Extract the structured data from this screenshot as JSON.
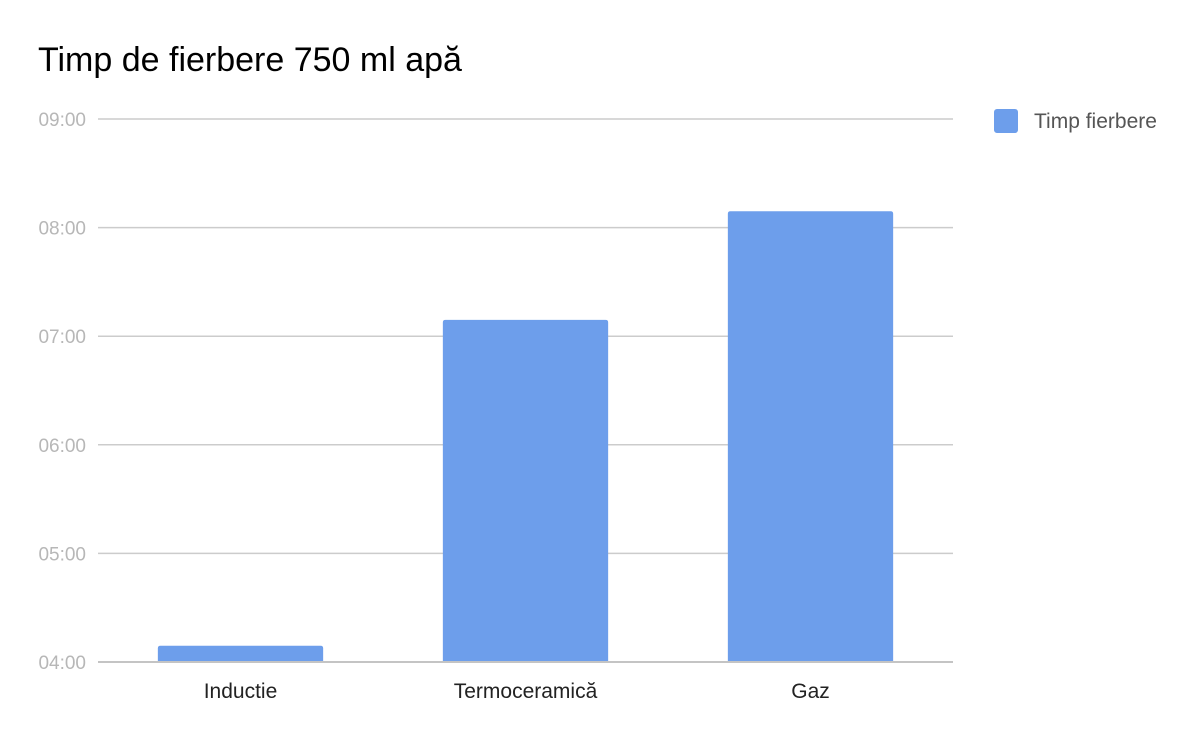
{
  "chart_data": {
    "type": "bar",
    "title": "Timp de fierbere 750 ml apă",
    "xlabel": "",
    "ylabel": "",
    "categories": [
      "Inductie",
      "Termoceramică",
      "Gaz"
    ],
    "series": [
      {
        "name": "Timp fierbere",
        "values": [
          "04:09",
          "07:09",
          "08:09"
        ],
        "values_seconds": [
          249,
          429,
          489
        ],
        "color": "#6d9eeb"
      }
    ],
    "y_ticks": [
      "04:00",
      "05:00",
      "06:00",
      "07:00",
      "08:00",
      "09:00"
    ],
    "ylim_seconds": [
      240,
      540
    ],
    "grid": true,
    "legend_position": "right-top"
  }
}
